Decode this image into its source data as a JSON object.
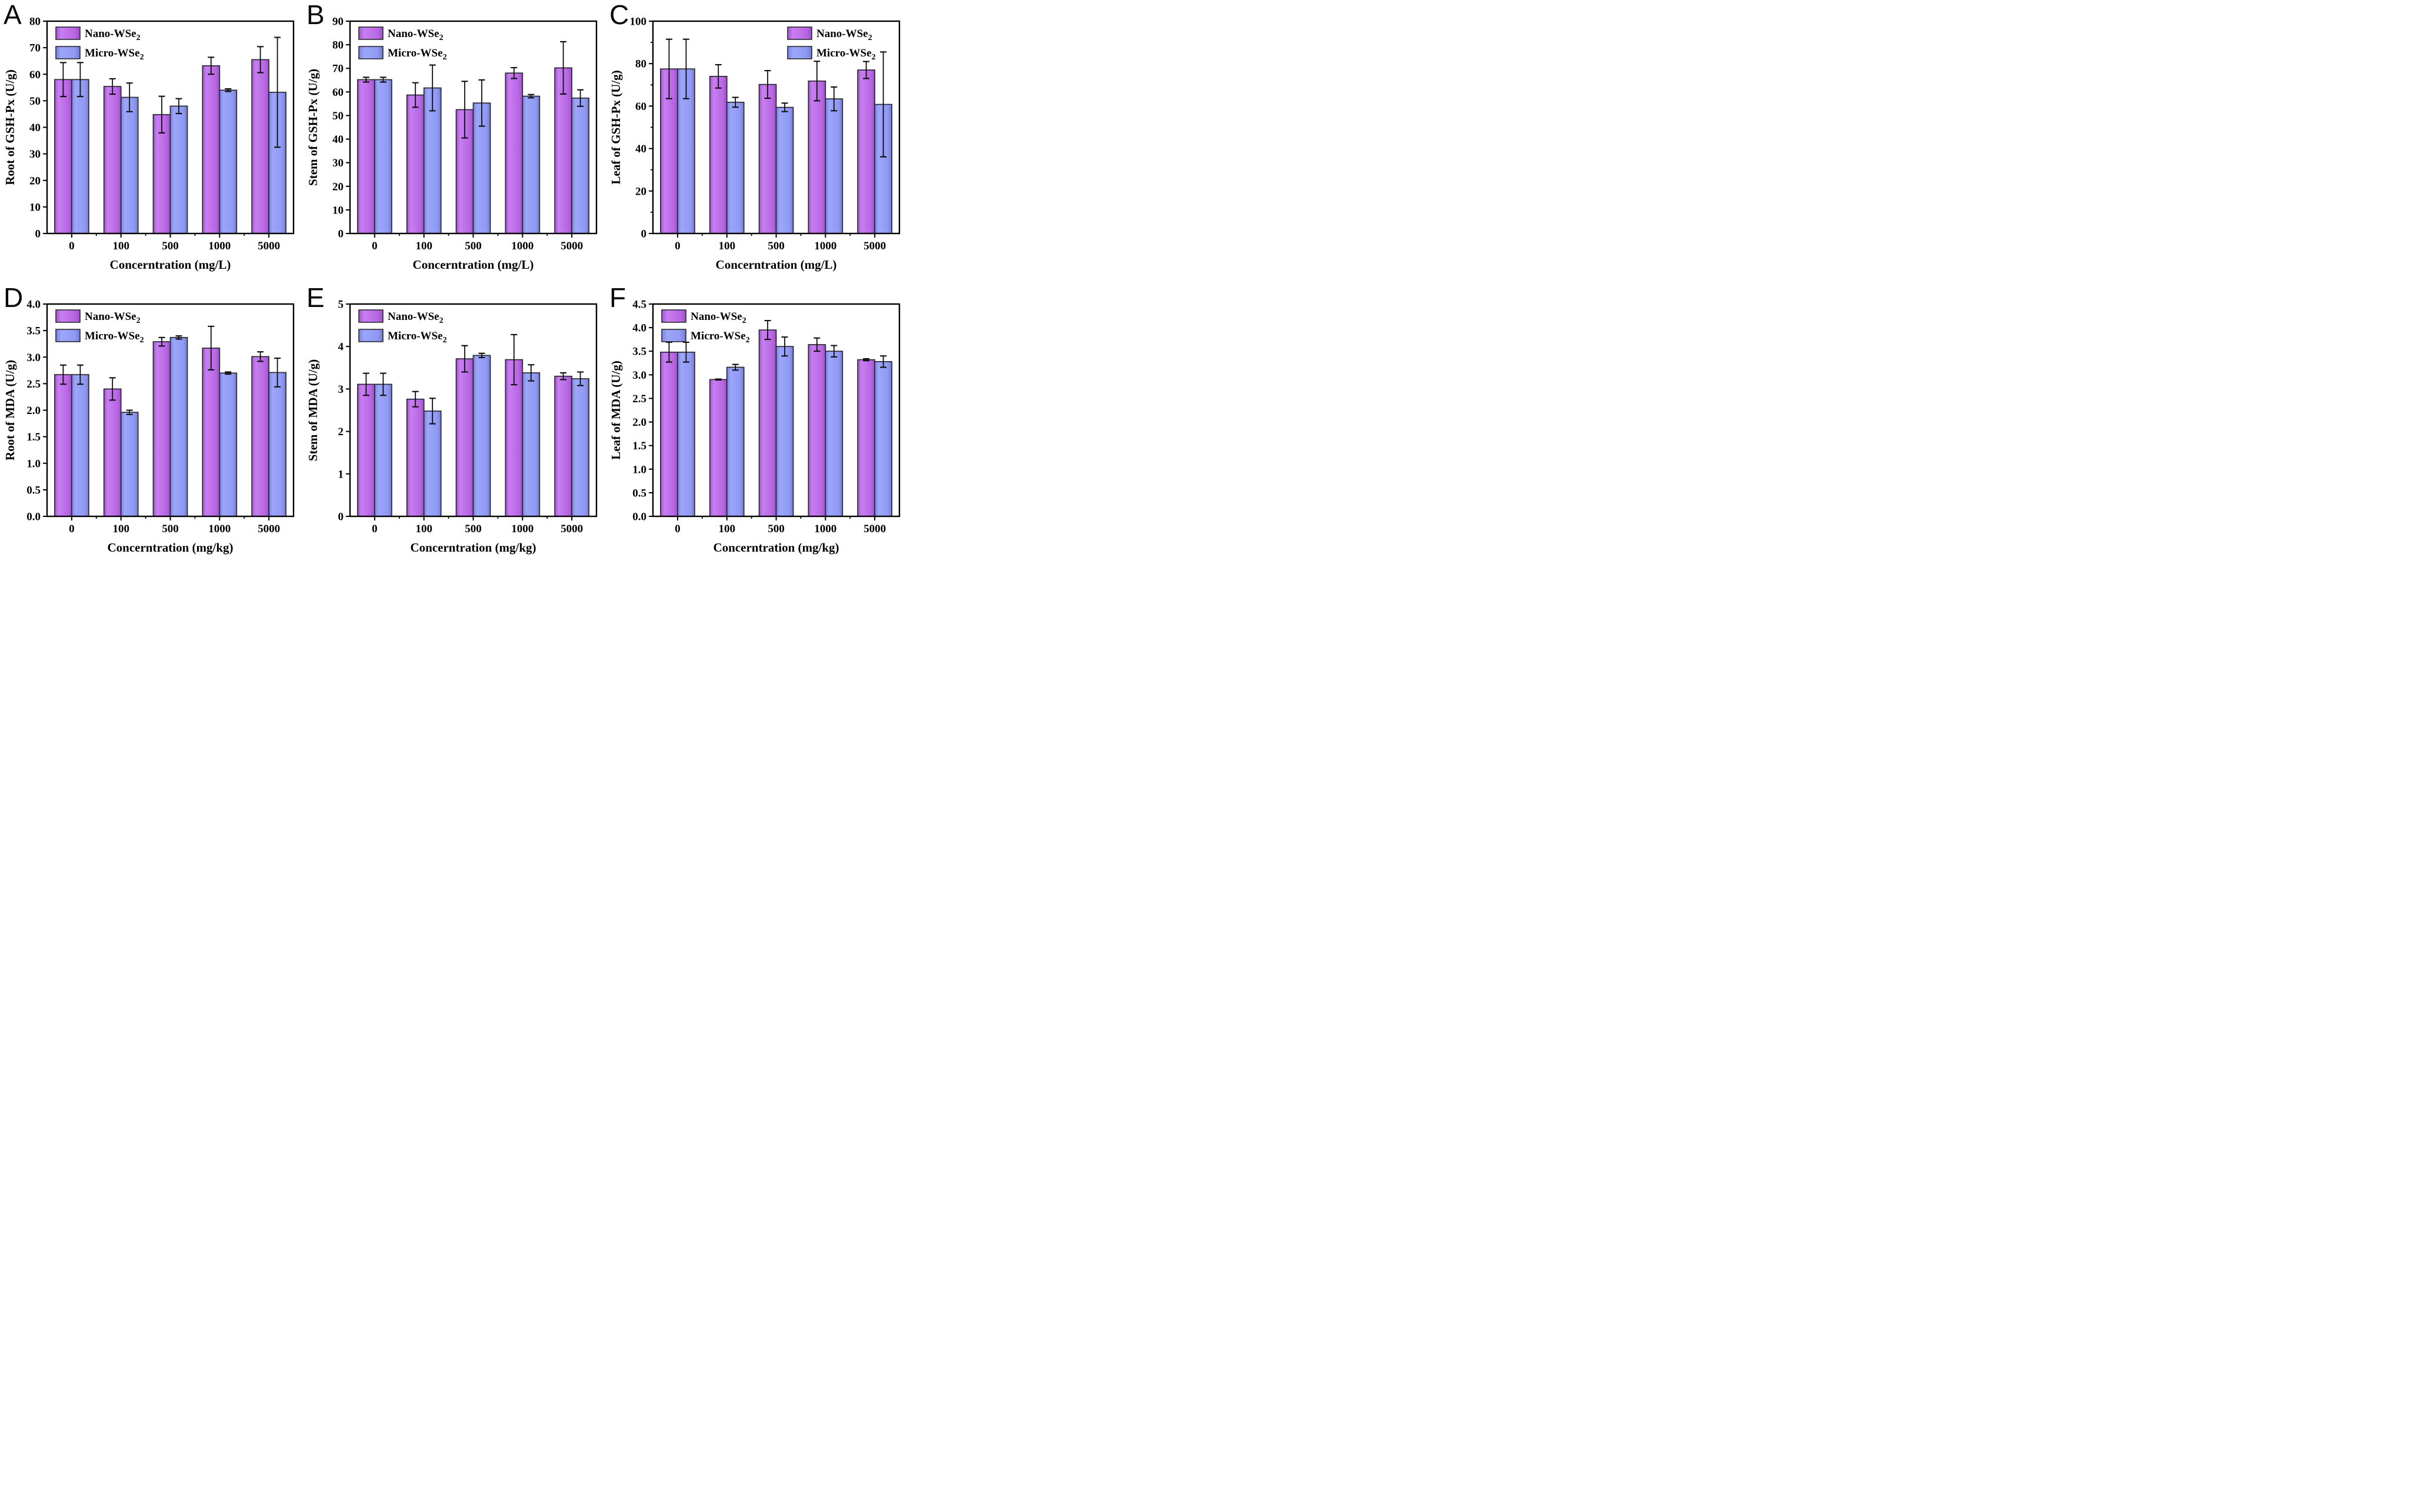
{
  "figure": {
    "background": "#ffffff",
    "axis_color": "#000000",
    "bar_border_color": "#2a2a30",
    "error_bar_color": "#0d0d0d",
    "series": [
      {
        "name": "Nano-WSe2",
        "fill": "#bc69e4",
        "gradient": [
          "#a254cc",
          "#c77ff0",
          "#b866e3",
          "#9d50c8"
        ]
      },
      {
        "name": "Micro-WSe2",
        "fill": "#8f99f2",
        "gradient": [
          "#7a83dd",
          "#9ca6fa",
          "#8f99f2",
          "#747ad0"
        ]
      }
    ]
  },
  "chart_data": [
    {
      "type": "bar",
      "panel": "A",
      "xlabel": "Concerntration (mg/L)",
      "ylabel": "Root of GSH-Px (U/g)",
      "categories": [
        "0",
        "100",
        "500",
        "1000",
        "5000"
      ],
      "ylim": [
        0,
        80
      ],
      "ytick_step": 10,
      "y_decimals": 0,
      "y_minor": false,
      "grid": false,
      "legend_position": "top-left",
      "legend_entries": [
        "Nano-WSe2",
        "Micro-WSe2"
      ],
      "series": [
        {
          "name": "Nano-WSe2",
          "values": [
            58.0,
            55.4,
            44.8,
            63.2,
            65.5
          ],
          "errors": [
            6.4,
            2.9,
            6.9,
            3.2,
            4.9
          ]
        },
        {
          "name": "Micro-WSe2",
          "values": [
            58.0,
            51.3,
            48.0,
            54.0,
            53.2
          ],
          "errors": [
            6.4,
            5.4,
            2.8,
            0.5,
            20.7
          ]
        }
      ]
    },
    {
      "type": "bar",
      "panel": "B",
      "xlabel": "Concerntration (mg/L)",
      "ylabel": "Stem of GSH-Px (U/g)",
      "categories": [
        "0",
        "100",
        "500",
        "1000",
        "5000"
      ],
      "ylim": [
        0,
        90
      ],
      "ytick_step": 10,
      "y_decimals": 0,
      "y_minor": false,
      "grid": false,
      "legend_position": "top-left",
      "legend_entries": [
        "Nano-WSe2",
        "Micro-WSe2"
      ],
      "series": [
        {
          "name": "Nano-WSe2",
          "values": [
            65.2,
            58.7,
            52.5,
            68.0,
            70.2
          ],
          "errors": [
            1.0,
            5.2,
            12.0,
            2.3,
            11.1
          ]
        },
        {
          "name": "Micro-WSe2",
          "values": [
            65.2,
            61.7,
            55.3,
            58.2,
            57.4
          ],
          "errors": [
            1.0,
            9.7,
            9.8,
            0.7,
            3.5
          ]
        }
      ]
    },
    {
      "type": "bar",
      "panel": "C",
      "xlabel": "Concerntration (mg/L)",
      "ylabel": "Leaf of GSH-Px (U/g)",
      "categories": [
        "0",
        "100",
        "500",
        "1000",
        "5000"
      ],
      "ylim": [
        0,
        100
      ],
      "ytick_step": 20,
      "y_decimals": 0,
      "y_minor": true,
      "grid": false,
      "legend_position": "top-right",
      "legend_entries": [
        "Nano-WSe2",
        "Micro-WSe2"
      ],
      "series": [
        {
          "name": "Nano-WSe2",
          "values": [
            77.5,
            74.0,
            70.2,
            71.8,
            77.0
          ],
          "errors": [
            14.0,
            5.5,
            6.5,
            9.3,
            4.0
          ]
        },
        {
          "name": "Micro-WSe2",
          "values": [
            77.5,
            61.8,
            59.4,
            63.4,
            60.8
          ],
          "errors": [
            14.0,
            2.3,
            2.0,
            5.6,
            24.7
          ]
        }
      ]
    },
    {
      "type": "bar",
      "panel": "D",
      "xlabel": "Concerntration (mg/kg)",
      "ylabel": "Root of MDA (U/g)",
      "categories": [
        "0",
        "100",
        "500",
        "1000",
        "5000"
      ],
      "ylim": [
        0,
        4.0
      ],
      "ytick_step": 0.5,
      "y_decimals": 1,
      "y_minor": false,
      "grid": false,
      "legend_position": "top-left",
      "legend_entries": [
        "Nano-WSe2",
        "Micro-WSe2"
      ],
      "series": [
        {
          "name": "Nano-WSe2",
          "values": [
            2.67,
            2.4,
            3.29,
            3.17,
            3.01
          ],
          "errors": [
            0.18,
            0.21,
            0.08,
            0.41,
            0.09
          ]
        },
        {
          "name": "Micro-WSe2",
          "values": [
            2.67,
            1.96,
            3.37,
            2.7,
            2.71
          ],
          "errors": [
            0.18,
            0.04,
            0.03,
            0.02,
            0.27
          ]
        }
      ]
    },
    {
      "type": "bar",
      "panel": "E",
      "xlabel": "Concerntration (mg/kg)",
      "ylabel": "Stem of MDA (U/g)",
      "categories": [
        "0",
        "100",
        "500",
        "1000",
        "5000"
      ],
      "ylim": [
        0,
        5
      ],
      "ytick_step": 1,
      "y_decimals": 0,
      "y_minor": false,
      "grid": false,
      "legend_position": "top-left",
      "legend_entries": [
        "Nano-WSe2",
        "Micro-WSe2"
      ],
      "series": [
        {
          "name": "Nano-WSe2",
          "values": [
            3.11,
            2.76,
            3.71,
            3.69,
            3.3
          ],
          "errors": [
            0.26,
            0.18,
            0.31,
            0.59,
            0.08
          ]
        },
        {
          "name": "Micro-WSe2",
          "values": [
            3.11,
            2.48,
            3.79,
            3.38,
            3.24
          ],
          "errors": [
            0.26,
            0.3,
            0.05,
            0.19,
            0.16
          ]
        }
      ]
    },
    {
      "type": "bar",
      "panel": "F",
      "xlabel": "Concerntration (mg/kg)",
      "ylabel": "Leaf of MDA (U/g)",
      "categories": [
        "0",
        "100",
        "500",
        "1000",
        "5000"
      ],
      "ylim": [
        0,
        4.5
      ],
      "ytick_step": 0.5,
      "y_decimals": 1,
      "y_minor": false,
      "grid": false,
      "legend_position": "top-left",
      "legend_entries": [
        "Nano-WSe2",
        "Micro-WSe2"
      ],
      "series": [
        {
          "name": "Nano-WSe2",
          "values": [
            3.48,
            2.9,
            3.95,
            3.64,
            3.32
          ],
          "errors": [
            0.21,
            0.01,
            0.2,
            0.14,
            0.02
          ]
        },
        {
          "name": "Micro-WSe2",
          "values": [
            3.48,
            3.16,
            3.6,
            3.5,
            3.28
          ],
          "errors": [
            0.21,
            0.06,
            0.2,
            0.12,
            0.12
          ]
        }
      ]
    }
  ]
}
